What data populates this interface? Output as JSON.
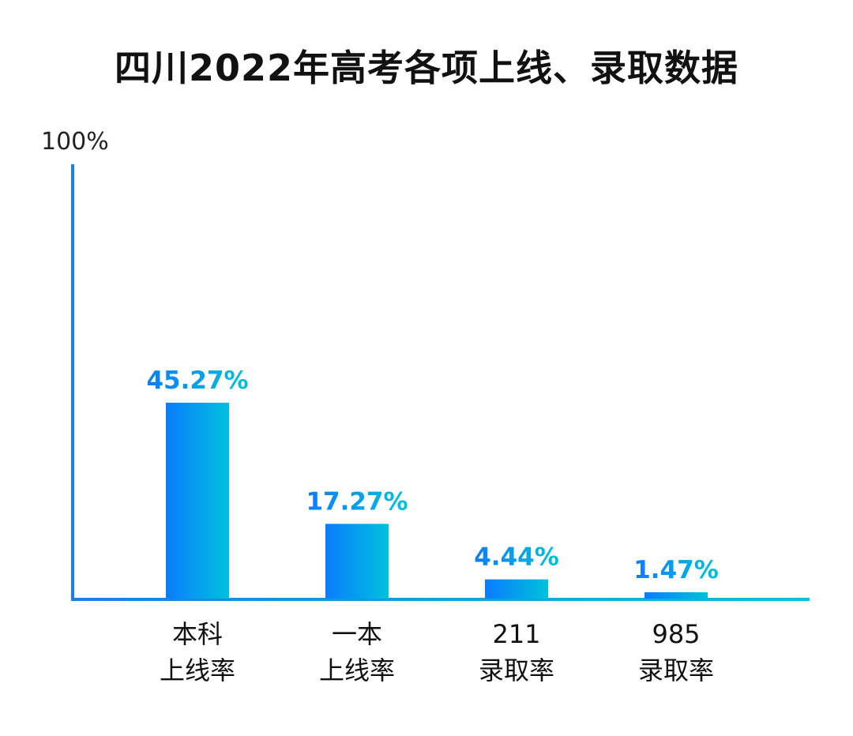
{
  "chart_data": {
    "type": "bar",
    "title": "四川2022年高考各项上线、录取数据",
    "y_tick_label": "100%",
    "ylim": [
      0,
      100
    ],
    "categories": [
      [
        "本科",
        "上线率"
      ],
      [
        "一本",
        "上线率"
      ],
      [
        "211",
        "录取率"
      ],
      [
        "985",
        "录取率"
      ]
    ],
    "values": [
      45.27,
      17.27,
      4.44,
      1.47
    ],
    "value_labels": [
      "45.27%",
      "17.27%",
      "4.44%",
      "1.47%"
    ],
    "grid": false,
    "colors": {
      "bar_start": "#0a7cff",
      "bar_end": "#00c2dc",
      "axis": "#1a80e6",
      "label": "#1a88ee"
    }
  }
}
